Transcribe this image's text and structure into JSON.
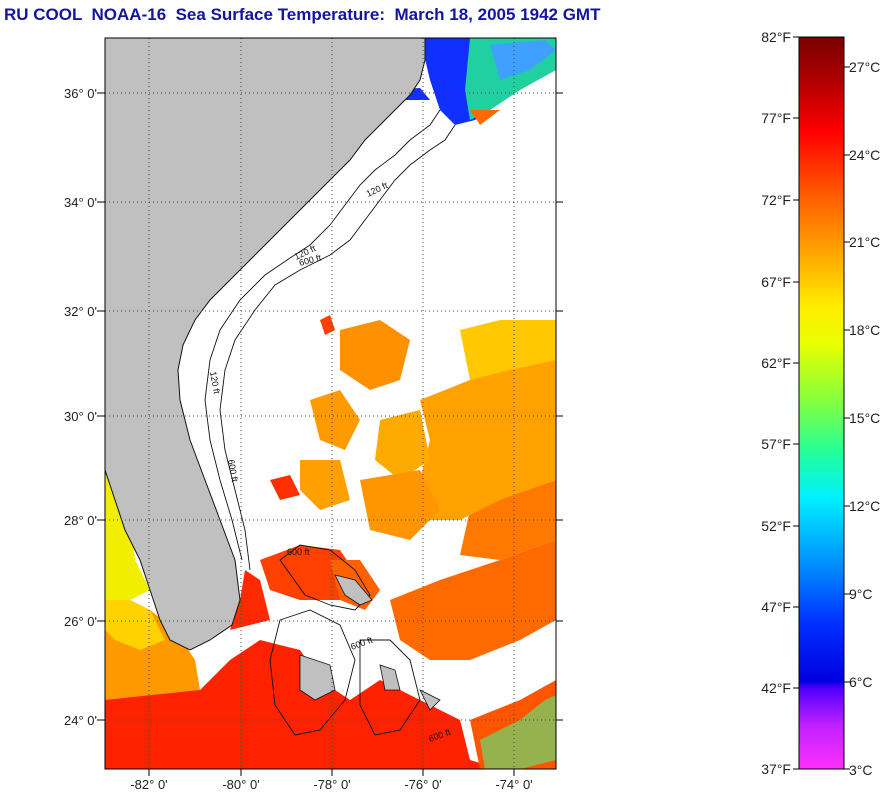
{
  "title": "RU COOL  NOAA-16  Sea Surface Temperature:  March 18, 2005 1942 GMT",
  "map": {
    "lat_labels": [
      "36° 0'",
      "34° 0'",
      "32° 0'",
      "30° 0'",
      "28° 0'",
      "26° 0'",
      "24° 0'"
    ],
    "lon_labels": [
      "-82° 0'",
      "-80° 0'",
      "-78° 0'",
      "-76° 0'",
      "-74° 0'"
    ],
    "contour_labels": [
      "120 ft",
      "600 ft",
      "120 ft",
      "600 ft",
      "600 ft",
      "120 ft",
      "600 ft",
      "600 ft"
    ],
    "land_color": "#c0c0c0",
    "cloud_color": "#ffffff"
  },
  "colorbar": {
    "fahrenheit_labels": [
      "82°F",
      "77°F",
      "72°F",
      "67°F",
      "62°F",
      "57°F",
      "52°F",
      "47°F",
      "42°F",
      "37°F"
    ],
    "celsius_labels": [
      "27°C",
      "24°C",
      "21°C",
      "18°C",
      "15°C",
      "12°C",
      "9°C",
      "6°C",
      "3°C"
    ],
    "colors_top_to_bottom": [
      "#7a0000",
      "#cc0000",
      "#ff2a00",
      "#ff8800",
      "#ffcc00",
      "#ffff00",
      "#a0ff30",
      "#30ff90",
      "#00ffff",
      "#0090ff",
      "#0020ff",
      "#0000cc",
      "#8000ff",
      "#ff20ff"
    ]
  }
}
